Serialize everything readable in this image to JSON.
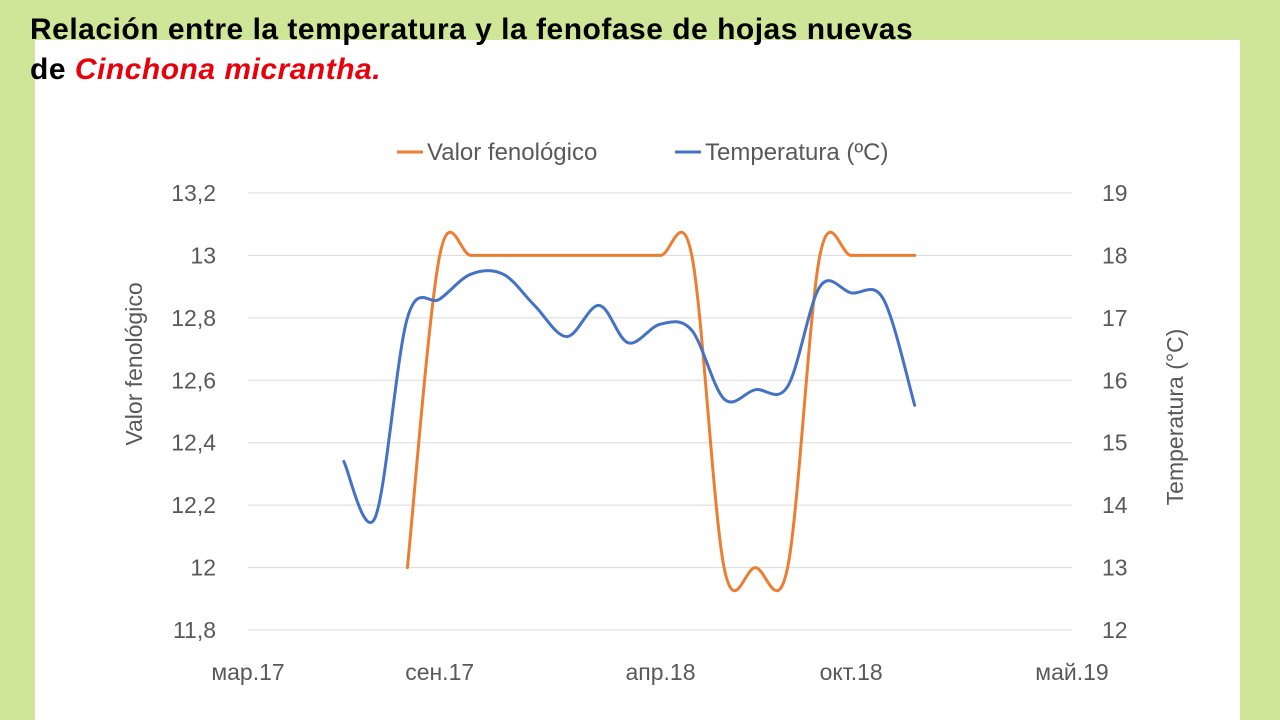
{
  "slide": {
    "title_line1": "Relación entre la temperatura y la fenofase de hojas nuevas",
    "title_line2_prefix": "de ",
    "title_species": "Cinchona micrantha."
  },
  "colors": {
    "background": "#cfe597",
    "panel": "#ffffff",
    "phenology_series": "#ed7d31",
    "temperature_series": "#4472c4",
    "species_text": "#e8000b"
  },
  "chart_data": {
    "type": "line",
    "legend_position": "top",
    "grid": true,
    "x_tick_labels": [
      "мар.17",
      "сен.17",
      "апр.18",
      "окт.18",
      "май.19"
    ],
    "x_tick_dates": [
      "2017-03-01",
      "2017-09-01",
      "2018-04-01",
      "2018-10-01",
      "2019-05-01"
    ],
    "xlim": [
      "2017-03-01",
      "2019-05-01"
    ],
    "y_left": {
      "label": "Valor fenológico",
      "range": [
        11.8,
        13.2
      ],
      "ticks": [
        "11,8",
        "12",
        "12,2",
        "12,4",
        "12,6",
        "12,8",
        "13",
        "13,2"
      ]
    },
    "y_right": {
      "label": "Temperatura (°C)",
      "range": [
        12,
        19
      ],
      "ticks": [
        "12",
        "13",
        "14",
        "15",
        "16",
        "17",
        "18",
        "19"
      ]
    },
    "series": [
      {
        "name": "Valor fenológico",
        "axis": "left",
        "color": "#ed7d31",
        "points": [
          {
            "x": "2017-08-01",
            "y": 12
          },
          {
            "x": "2017-09-01",
            "y": 13
          },
          {
            "x": "2017-10-01",
            "y": 13
          },
          {
            "x": "2017-11-01",
            "y": 13
          },
          {
            "x": "2017-12-01",
            "y": 13
          },
          {
            "x": "2018-01-01",
            "y": 13
          },
          {
            "x": "2018-02-01",
            "y": 13
          },
          {
            "x": "2018-03-01",
            "y": 13
          },
          {
            "x": "2018-04-01",
            "y": 13
          },
          {
            "x": "2018-05-01",
            "y": 13
          },
          {
            "x": "2018-06-01",
            "y": 12
          },
          {
            "x": "2018-07-01",
            "y": 12
          },
          {
            "x": "2018-08-01",
            "y": 12
          },
          {
            "x": "2018-09-01",
            "y": 13
          },
          {
            "x": "2018-10-01",
            "y": 13
          },
          {
            "x": "2018-11-01",
            "y": 13
          },
          {
            "x": "2018-12-01",
            "y": 13
          }
        ]
      },
      {
        "name": "Temperatura (ºC)",
        "axis": "right",
        "color": "#4472c4",
        "points": [
          {
            "x": "2017-06-01",
            "y": 14.7
          },
          {
            "x": "2017-07-01",
            "y": 13.8
          },
          {
            "x": "2017-08-01",
            "y": 17.0
          },
          {
            "x": "2017-09-01",
            "y": 17.3
          },
          {
            "x": "2017-10-01",
            "y": 17.7
          },
          {
            "x": "2017-11-01",
            "y": 17.7
          },
          {
            "x": "2017-12-01",
            "y": 17.2
          },
          {
            "x": "2018-01-01",
            "y": 16.7
          },
          {
            "x": "2018-02-01",
            "y": 17.2
          },
          {
            "x": "2018-03-01",
            "y": 16.6
          },
          {
            "x": "2018-04-01",
            "y": 16.9
          },
          {
            "x": "2018-05-01",
            "y": 16.8
          },
          {
            "x": "2018-06-01",
            "y": 15.7
          },
          {
            "x": "2018-07-01",
            "y": 15.85
          },
          {
            "x": "2018-08-01",
            "y": 15.9
          },
          {
            "x": "2018-09-01",
            "y": 17.5
          },
          {
            "x": "2018-10-01",
            "y": 17.4
          },
          {
            "x": "2018-11-01",
            "y": 17.3
          },
          {
            "x": "2018-12-01",
            "y": 15.6
          }
        ]
      }
    ]
  }
}
